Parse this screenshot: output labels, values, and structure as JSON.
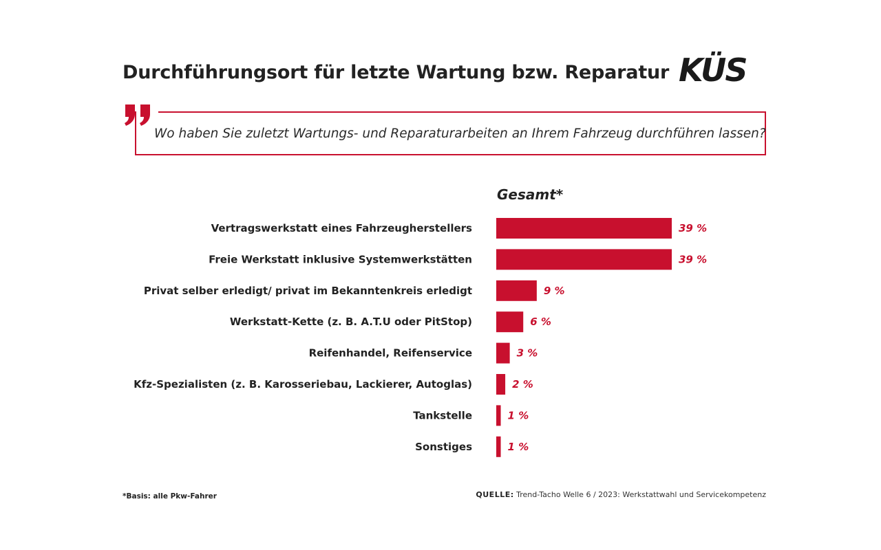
{
  "title": "Durchführungsort für letzte Wartung bzw. Reparatur",
  "logo_text": "KÜS",
  "question": "Wo haben Sie zuletzt Wartungs- und Reparaturarbeiten an Ihrem Fahrzeug durchführen lassen?",
  "colors": {
    "accent": "#c8102e",
    "text": "#222222",
    "logo": "#1a1a1a"
  },
  "chart_data": {
    "type": "bar",
    "orientation": "horizontal",
    "column_header": "Gesamt*",
    "categories": [
      "Vertragswerkstatt eines Fahrzeugherstellers",
      "Freie Werkstatt inklusive Systemwerkstätten",
      "Privat selber erledigt/ privat im Bekanntenkreis erledigt",
      "Werkstatt-Kette (z. B. A.T.U oder PitStop)",
      "Reifenhandel, Reifenservice",
      "Kfz-Spezialisten (z. B. Karosseriebau, Lackierer, Autoglas)",
      "Tankstelle",
      "Sonstiges"
    ],
    "values": [
      39,
      39,
      9,
      6,
      3,
      2,
      1,
      1
    ],
    "value_labels": [
      "39 %",
      "39 %",
      "9 %",
      "6 %",
      "3 %",
      "2 %",
      "1 %",
      "1 %"
    ],
    "unit": "%",
    "grid": false
  },
  "footnote": "*Basis: alle Pkw-Fahrer",
  "source": {
    "label": "QUELLE:",
    "text": "Trend-Tacho Welle 6 / 2023: Werkstattwahl und Servicekompetenz"
  }
}
